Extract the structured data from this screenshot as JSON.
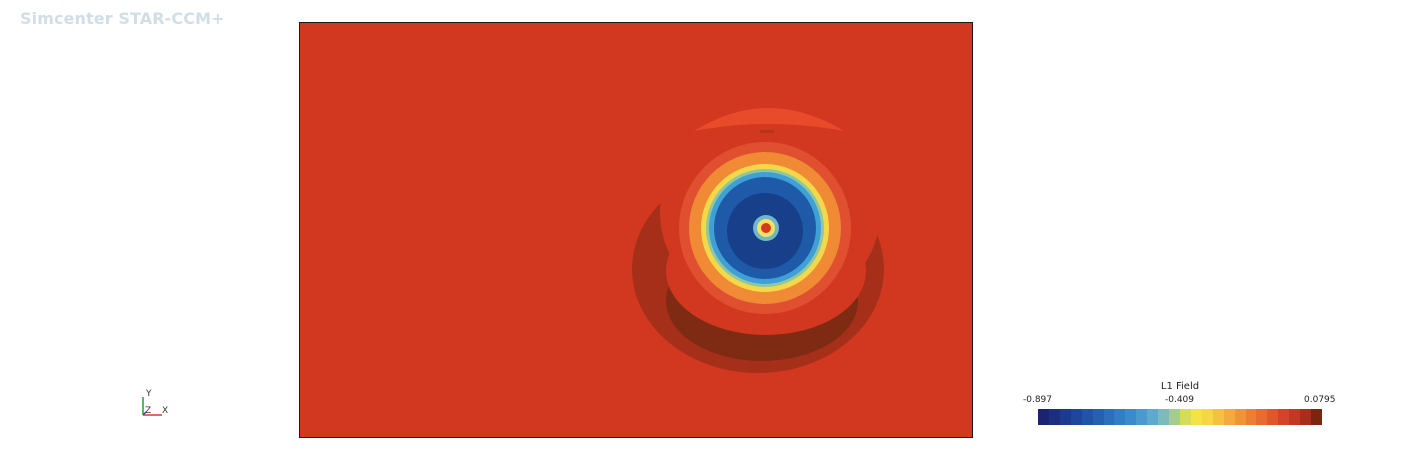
{
  "app": {
    "brand": "Simcenter STAR-CCM+"
  },
  "scene": {
    "background_color": "#d2381f",
    "field_colors": {
      "dark_band": "#a52f18",
      "darker_crescent": "#7f2a12",
      "top_arc": "#e84a2a",
      "ring_red": "#e05030",
      "ring_orange": "#f08a35",
      "ring_yellow": "#f5d84a",
      "ring_green": "#8fc7a0",
      "ring_cyan": "#3fa0d8",
      "core_blue": "#1f5aa8",
      "core_dark": "#173f8a",
      "center_yellow": "#f7e064",
      "center_red": "#d63a1c"
    }
  },
  "triad": {
    "y_label": "Y",
    "z_label": "Z",
    "x_label": "X",
    "colors": {
      "y": "#2e9a2e",
      "x": "#d23a2a",
      "z": "#2a4fd2"
    }
  },
  "legend": {
    "title": "L1 Field",
    "min_label": "-0.897",
    "mid_label": "-0.409",
    "max_label": "0.0795",
    "colors": [
      "#1b2470",
      "#1c2f7f",
      "#1d3b8e",
      "#1e479b",
      "#2154a6",
      "#2661b0",
      "#2c6fba",
      "#327dc3",
      "#3b8bcb",
      "#4a9ad0",
      "#5eaace",
      "#7bbbbb",
      "#a5cc8e",
      "#d5dc5a",
      "#f3e349",
      "#f6d647",
      "#f5c143",
      "#f2ab3e",
      "#ef9539",
      "#eb8035",
      "#e66c31",
      "#df582d",
      "#d24528",
      "#c23823",
      "#a72e1c",
      "#7d2410"
    ]
  }
}
